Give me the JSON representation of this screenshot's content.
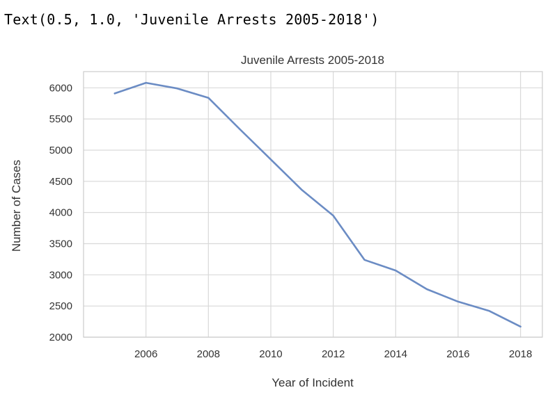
{
  "output": {
    "text": "Text(0.5, 1.0, 'Juvenile Arrests 2005-2018')"
  },
  "chart_data": {
    "type": "line",
    "title": "Juvenile Arrests 2005-2018",
    "xlabel": "Year of Incident",
    "ylabel": "Number of Cases",
    "x": [
      2005,
      2006,
      2007,
      2008,
      2009,
      2010,
      2011,
      2012,
      2013,
      2014,
      2015,
      2016,
      2017,
      2018
    ],
    "series": [
      {
        "values": [
          5910,
          6080,
          5990,
          5840,
          5340,
          4850,
          4360,
          3950,
          3240,
          3070,
          2770,
          2570,
          2420,
          2170
        ]
      }
    ],
    "xticks": [
      2006,
      2008,
      2010,
      2012,
      2014,
      2016,
      2018
    ],
    "yticks": [
      2000,
      2500,
      3000,
      3500,
      4000,
      4500,
      5000,
      5500,
      6000
    ],
    "xlim": [
      2004.0,
      2018.7
    ],
    "ylim": [
      2000,
      6260
    ],
    "grid": true,
    "colors": {
      "line": "#6b8cc4",
      "grid": "#d9d9d9",
      "frame": "#cccccc"
    }
  }
}
